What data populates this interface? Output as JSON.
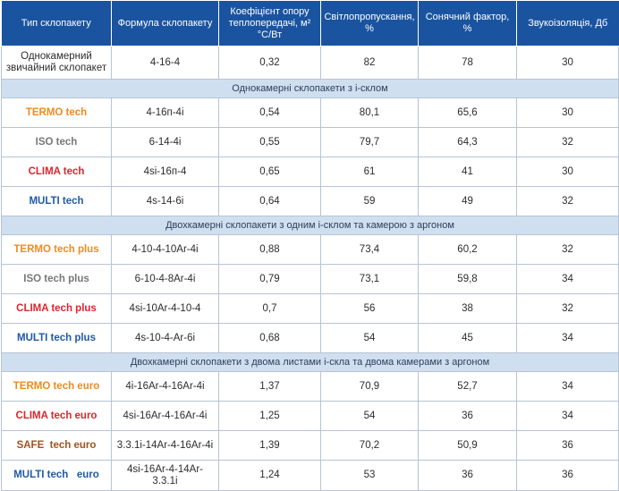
{
  "table": {
    "columns": [
      "Тип склопакету",
      "Формула  склопакету",
      "Коефіцієнт опору теплопередачі, м² °С/Вт",
      "Світлопропускання, %",
      "Сонячний фактор, %",
      "Звукоізоляція, Дб"
    ],
    "first_row": {
      "type": "Однокамерний звичайний склопакет",
      "formula": "4-16-4",
      "resistance": "0,32",
      "light": "82",
      "solar": "78",
      "sound": "30"
    },
    "sections": [
      {
        "title": "Однокамерні склопакети з  i-склом",
        "rows": [
          {
            "type": "TERMO tech",
            "color": "#f08b20",
            "formula": "4-16п-4i",
            "resistance": "0,54",
            "light": "80,1",
            "solar": "65,6",
            "sound": "30"
          },
          {
            "type": "ISO tech",
            "color": "#777777",
            "formula": "6-14-4i",
            "resistance": "0,55",
            "light": "79,7",
            "solar": "64,3",
            "sound": "32"
          },
          {
            "type": "CLIMA tech",
            "color": "#d7282f",
            "formula": "4si-16п-4",
            "resistance": "0,65",
            "light": "61",
            "solar": "41",
            "sound": "30"
          },
          {
            "type": "MULTI tech",
            "color": "#1f5aa6",
            "formula": "4s-14-6i",
            "resistance": "0,64",
            "light": "59",
            "solar": "49",
            "sound": "32"
          }
        ]
      },
      {
        "title": "Двохкамерні склопакети з одним  i-склом та камерою з аргоном",
        "rows": [
          {
            "type": "TERMO tech plus",
            "color": "#f08b20",
            "formula": "4-10-4-10Ar-4i",
            "resistance": "0,88",
            "light": "73,4",
            "solar": "60,2",
            "sound": "32"
          },
          {
            "type": "ISO tech plus",
            "color": "#777777",
            "formula": "6-10-4-8Ar-4i",
            "resistance": "0,79",
            "light": "73,1",
            "solar": "59,8",
            "sound": "34"
          },
          {
            "type": "CLIMA tech plus",
            "color": "#d7282f",
            "formula": "4si-10Ar-4-10-4",
            "resistance": "0,7",
            "light": "56",
            "solar": "38",
            "sound": "32"
          },
          {
            "type": "MULTI tech plus",
            "color": "#1f5aa6",
            "formula": "4s-10-4-Ar-6i",
            "resistance": "0,68",
            "light": "54",
            "solar": "45",
            "sound": "34"
          }
        ]
      },
      {
        "title": "Двохкамерні склопакети з двома листами i-скла та двома камерами з аргоном",
        "rows": [
          {
            "type": "TERMO tech euro",
            "color": "#f08b20",
            "formula": "4i-16Ar-4-16Ar-4i",
            "resistance": "1,37",
            "light": "70,9",
            "solar": "52,7",
            "sound": "34"
          },
          {
            "type": "CLIMA tech euro",
            "color": "#d7282f",
            "formula": "4si-16Ar-4-16Ar-4i",
            "resistance": "1,25",
            "light": "54",
            "solar": "36",
            "sound": "34"
          },
          {
            "type": "SAFE  tech euro",
            "color": "#a2531e",
            "formula": "3.3.1i-14Ar-4-16Ar-4i",
            "resistance": "1,39",
            "light": "70,2",
            "solar": "50,9",
            "sound": "36"
          },
          {
            "type": "MULTI tech   euro",
            "color": "#1f5aa6",
            "formula": "4si-16Ar-4-14Ar-3.3.1i",
            "resistance": "1,24",
            "light": "53",
            "solar": "36",
            "sound": "36"
          }
        ]
      }
    ]
  }
}
